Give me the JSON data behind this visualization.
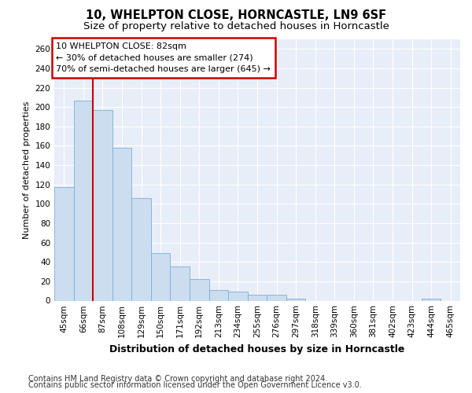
{
  "title1": "10, WHELPTON CLOSE, HORNCASTLE, LN9 6SF",
  "title2": "Size of property relative to detached houses in Horncastle",
  "xlabel": "Distribution of detached houses by size in Horncastle",
  "ylabel": "Number of detached properties",
  "categories": [
    "45sqm",
    "66sqm",
    "87sqm",
    "108sqm",
    "129sqm",
    "150sqm",
    "171sqm",
    "192sqm",
    "213sqm",
    "234sqm",
    "255sqm",
    "276sqm",
    "297sqm",
    "318sqm",
    "339sqm",
    "360sqm",
    "381sqm",
    "402sqm",
    "423sqm",
    "444sqm",
    "465sqm"
  ],
  "values": [
    117,
    207,
    197,
    158,
    106,
    49,
    35,
    22,
    11,
    9,
    6,
    6,
    2,
    0,
    0,
    0,
    0,
    0,
    0,
    2,
    0
  ],
  "bar_color": "#ccddf0",
  "bar_edge_color": "#7aafd4",
  "vline_x_index": 2,
  "vline_color": "#cc0000",
  "vline_linewidth": 1.5,
  "ylim": [
    0,
    270
  ],
  "yticks": [
    0,
    20,
    40,
    60,
    80,
    100,
    120,
    140,
    160,
    180,
    200,
    220,
    240,
    260
  ],
  "annotation_text": "10 WHELPTON CLOSE: 82sqm\n← 30% of detached houses are smaller (274)\n70% of semi-detached houses are larger (645) →",
  "annotation_box_color": "#ffffff",
  "annotation_edge_color": "#cc0000",
  "footer1": "Contains HM Land Registry data © Crown copyright and database right 2024.",
  "footer2": "Contains public sector information licensed under the Open Government Licence v3.0.",
  "fig_bg_color": "#ffffff",
  "plot_bg_color": "#e8eef8",
  "grid_color": "#ffffff",
  "title1_fontsize": 10.5,
  "title2_fontsize": 9.5,
  "xlabel_fontsize": 9,
  "ylabel_fontsize": 8,
  "tick_fontsize": 7.5,
  "footer_fontsize": 7,
  "ann_fontsize": 8
}
